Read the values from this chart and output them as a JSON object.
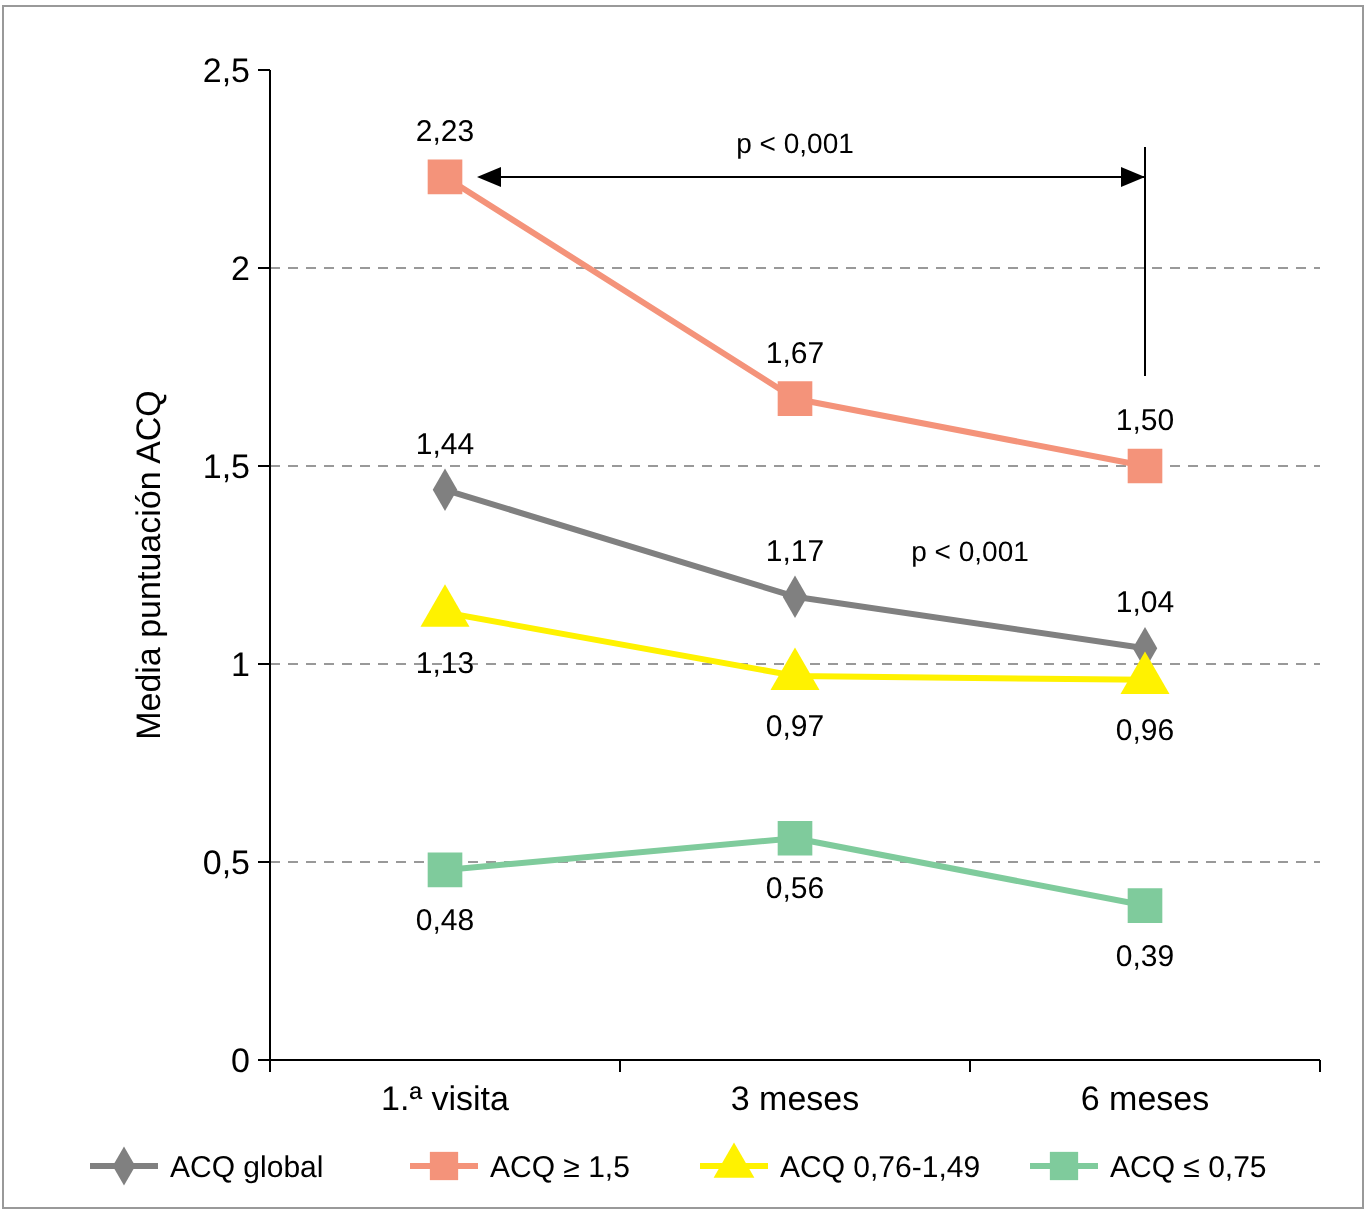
{
  "chart_data": {
    "type": "line",
    "ylabel": "Media puntuación ACQ",
    "categories": [
      "1.ª visita",
      "3 meses",
      "6 meses"
    ],
    "ylim": [
      0,
      2.5
    ],
    "yticks": [
      0,
      {
        "value": 0.5,
        "label": "0,5"
      },
      1,
      {
        "value": 1.5,
        "label": "1,5"
      },
      2,
      {
        "value": 2.5,
        "label": "2,5"
      }
    ],
    "grid": "y",
    "legend": "bottom",
    "line_style": "solid",
    "series": [
      {
        "name": "ACQ global",
        "color": "#808080",
        "marker": "diamond",
        "values": [
          1.44,
          1.17,
          1.04
        ],
        "value_labels": [
          "1,44",
          "1,17",
          "1,04"
        ]
      },
      {
        "name": "ACQ ≥ 1,5",
        "color": "#f4937a",
        "marker": "square",
        "values": [
          2.23,
          1.67,
          1.5
        ],
        "value_labels": [
          "2,23",
          "1,67",
          "1,50"
        ]
      },
      {
        "name": "ACQ 0,76-1,49",
        "color": "#fff200",
        "marker": "triangle",
        "values": [
          1.13,
          0.97,
          0.96
        ],
        "value_labels": [
          "1,13",
          "0,97",
          "0,96"
        ]
      },
      {
        "name": "ACQ ≤ 0,75",
        "color": "#7fcb9c",
        "marker": "square",
        "values": [
          0.48,
          0.56,
          0.39
        ],
        "value_labels": [
          "0,48",
          "0,56",
          "0,39"
        ]
      }
    ],
    "annotations": [
      "p < 0,001",
      "p < 0,001"
    ]
  }
}
